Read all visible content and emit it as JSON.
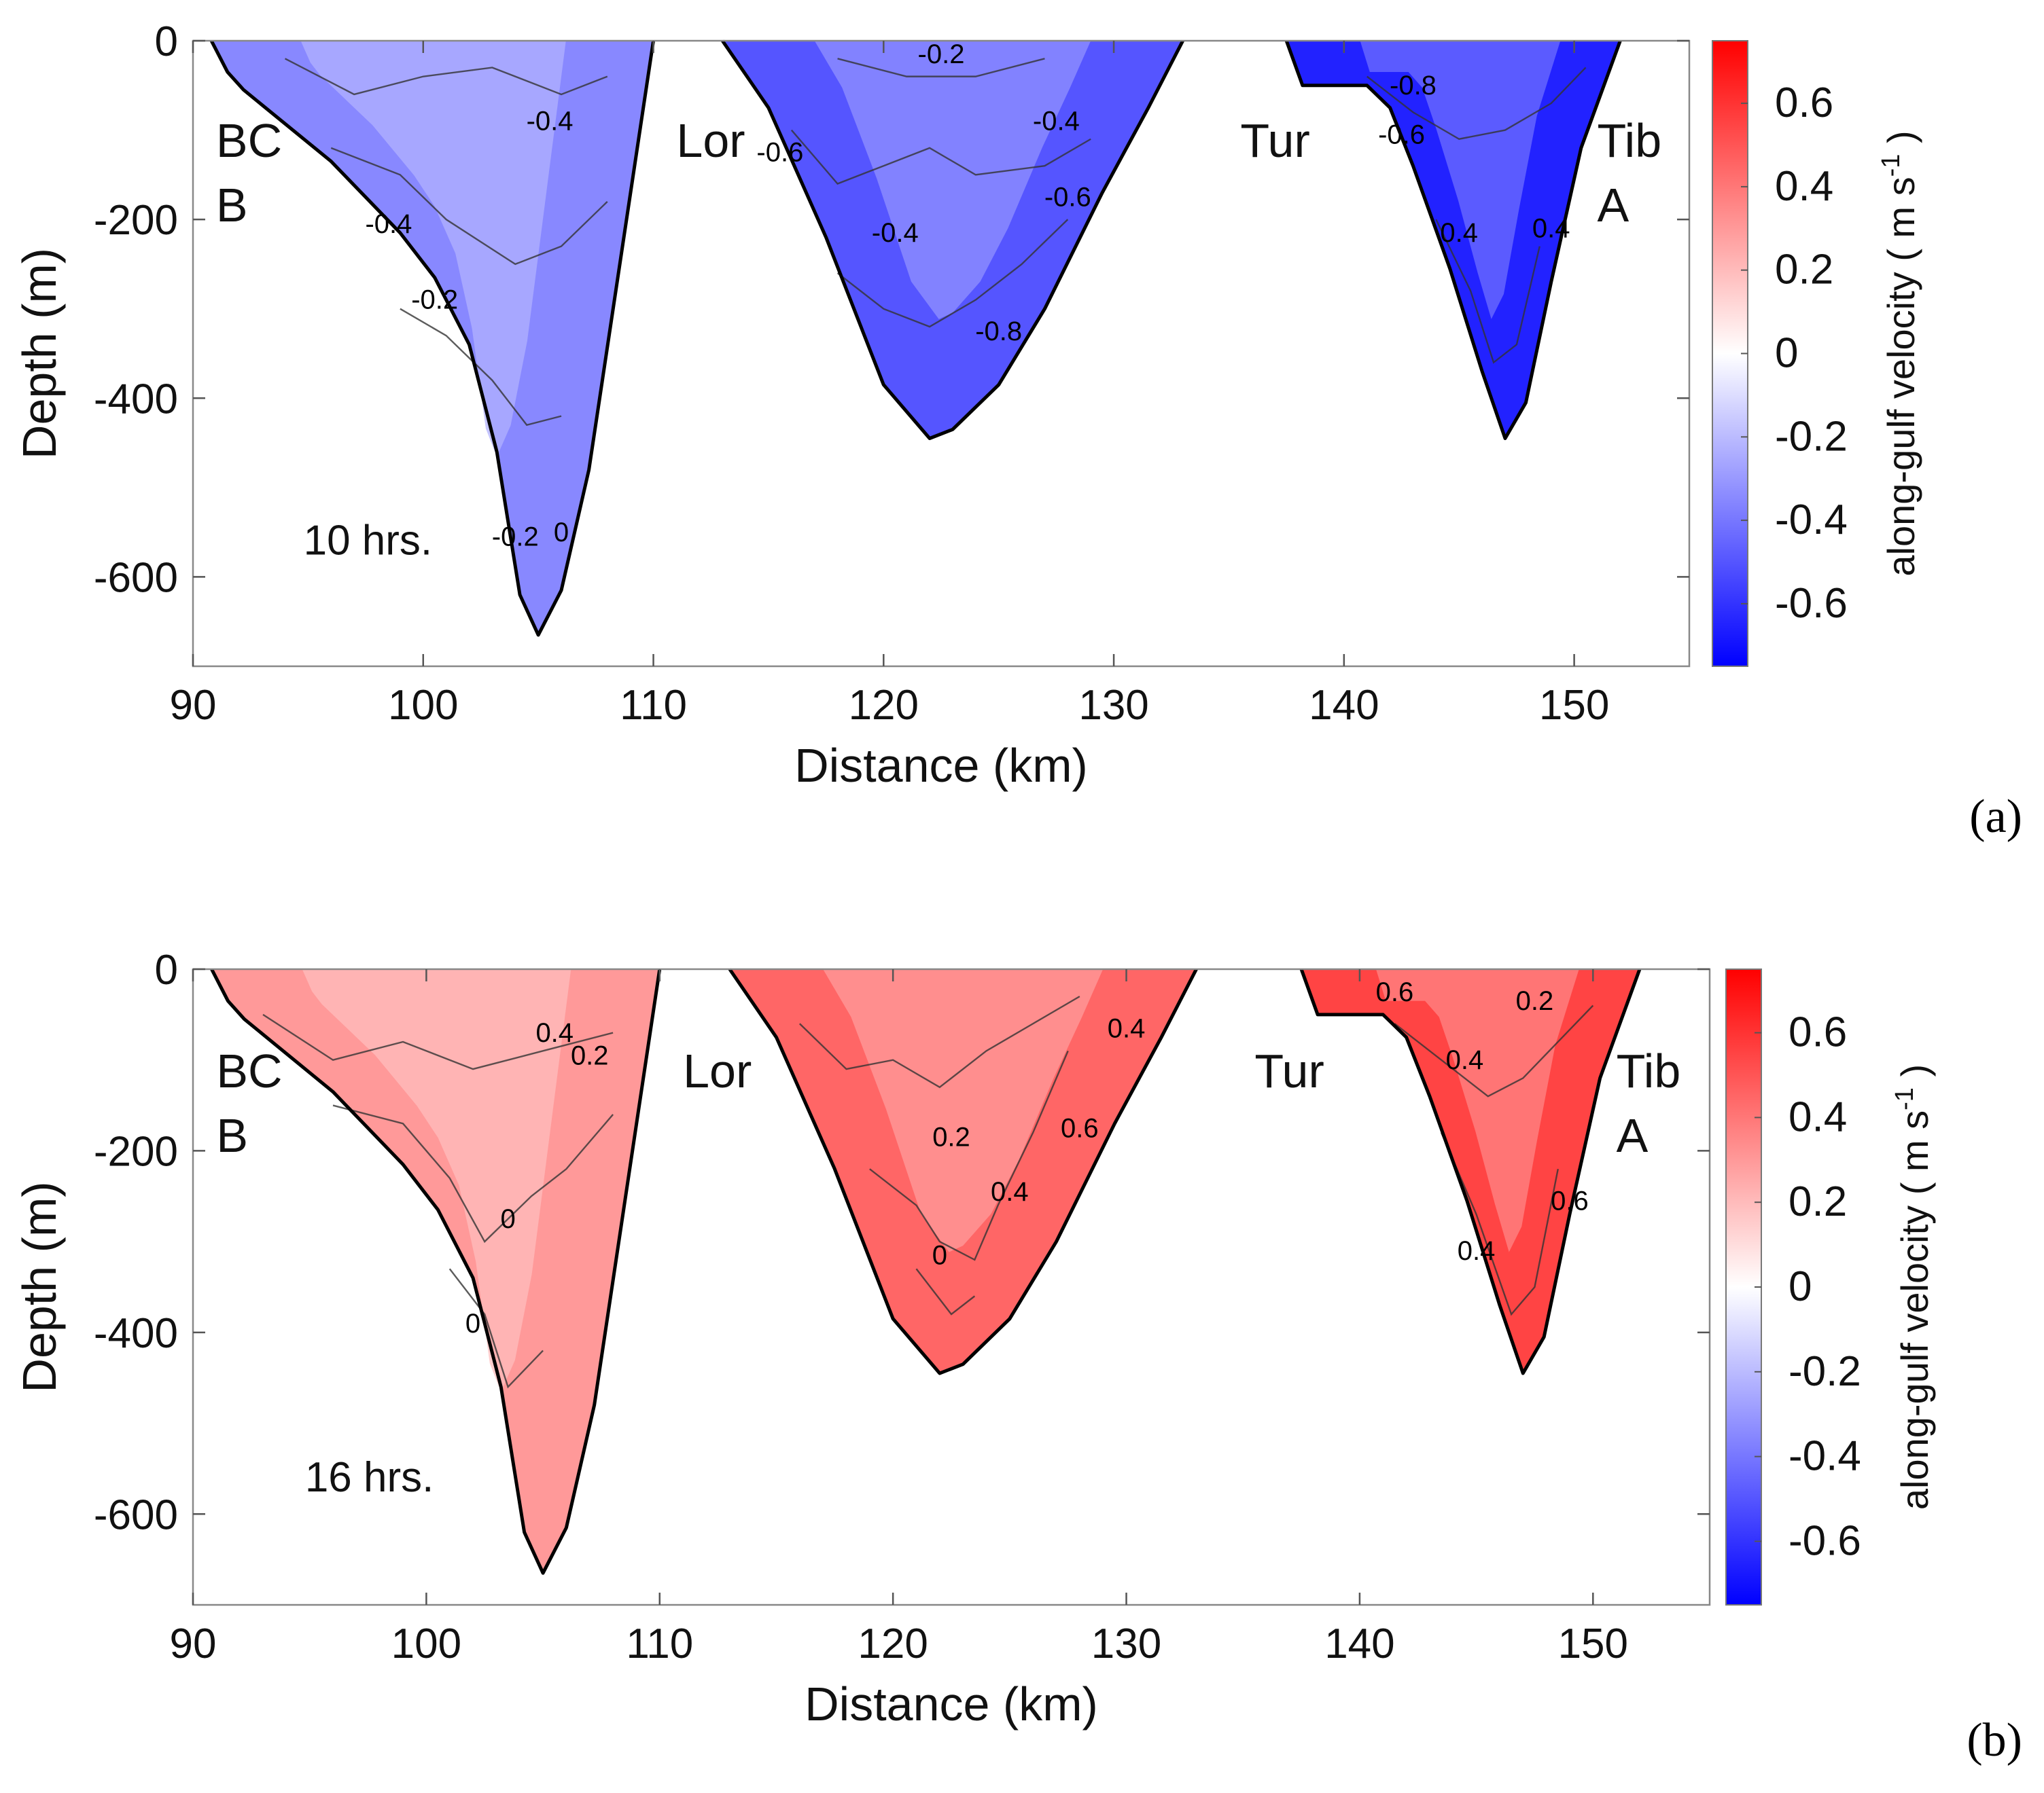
{
  "colors": {
    "negative": "#0000ff",
    "positive": "#ff0000",
    "zero": "#ffffff",
    "topography": "#ffffff"
  },
  "chart_data": [
    {
      "type": "heatmap",
      "panel_label": "(a)",
      "time_label": "10 hrs.",
      "xlabel": "Distance (km)",
      "ylabel": "Depth (m)",
      "xlim": [
        90,
        155
      ],
      "ylim": [
        -700,
        0
      ],
      "xticks": [
        90,
        100,
        110,
        120,
        130,
        140,
        150
      ],
      "yticks": [
        0,
        -200,
        -400,
        -600
      ],
      "colorbar": {
        "label": "along-gulf velocity ( m s",
        "label_sup": "-1",
        "label_end": ")",
        "range": [
          -0.75,
          0.75
        ],
        "ticks": [
          "0.6",
          "0.4",
          "0.2",
          "0",
          "-0.2",
          "-0.4",
          "-0.6"
        ],
        "tick_values": [
          0.6,
          0.4,
          0.2,
          0,
          -0.2,
          -0.4,
          -0.6
        ]
      },
      "region_labels": [
        {
          "line1": "BC",
          "line2": "B",
          "x": 91.0,
          "y": -130
        },
        {
          "line1": "Lor",
          "line2": "",
          "x": 111.0,
          "y": -130
        },
        {
          "line1": "Tur",
          "line2": "",
          "x": 135.5,
          "y": -130
        },
        {
          "line1": "Tib",
          "line2": "A",
          "x": 151.0,
          "y": -130
        }
      ],
      "channels": [
        {
          "name": "BC B",
          "x_range": [
            91,
            110
          ],
          "max_depth": -665,
          "mean_velocity": -0.35
        },
        {
          "name": "Lor",
          "x_range": [
            113,
            133
          ],
          "max_depth": -445,
          "mean_velocity": -0.5
        },
        {
          "name": "Tib A",
          "x_range": [
            139,
            152
          ],
          "max_depth": -445,
          "mean_velocity": -0.65
        }
      ],
      "contour_labels": [
        {
          "text": "-0.4",
          "x": 105.5,
          "y": -100
        },
        {
          "text": "-0.4",
          "x": 98.5,
          "y": -215
        },
        {
          "text": "-0.2",
          "x": 100.5,
          "y": -300
        },
        {
          "text": "-0.2",
          "x": 104.0,
          "y": -565
        },
        {
          "text": "0",
          "x": 106.0,
          "y": -560
        },
        {
          "text": "-0.2",
          "x": 122.5,
          "y": -25
        },
        {
          "text": "-0.6",
          "x": 115.5,
          "y": -135
        },
        {
          "text": "-0.4",
          "x": 120.5,
          "y": -225
        },
        {
          "text": "-0.4",
          "x": 127.5,
          "y": -100
        },
        {
          "text": "-0.6",
          "x": 128.0,
          "y": -185
        },
        {
          "text": "-0.8",
          "x": 125.0,
          "y": -335
        },
        {
          "text": "-0.8",
          "x": 143.0,
          "y": -60
        },
        {
          "text": "-0.6",
          "x": 142.5,
          "y": -115
        },
        {
          "text": "0.4",
          "x": 145.0,
          "y": -225
        },
        {
          "text": "0.4",
          "x": 149.0,
          "y": -220
        }
      ]
    },
    {
      "type": "heatmap",
      "panel_label": "(b)",
      "time_label": "16 hrs.",
      "xlabel": "Distance (km)",
      "ylabel": "Depth (m)",
      "xlim": [
        90,
        155
      ],
      "ylim": [
        -700,
        0
      ],
      "xticks": [
        90,
        100,
        110,
        120,
        130,
        140,
        150
      ],
      "yticks": [
        0,
        -200,
        -400,
        -600
      ],
      "colorbar": {
        "label": "along-gulf velocity ( m s",
        "label_sup": "-1",
        "label_end": ")",
        "range": [
          -0.75,
          0.75
        ],
        "ticks": [
          "0.6",
          "0.4",
          "0.2",
          "0",
          "-0.2",
          "-0.4",
          "-0.6"
        ],
        "tick_values": [
          0.6,
          0.4,
          0.2,
          0,
          -0.2,
          -0.4,
          -0.6
        ]
      },
      "region_labels": [
        {
          "line1": "BC",
          "line2": "B",
          "x": 91.0,
          "y": -130
        },
        {
          "line1": "Lor",
          "line2": "",
          "x": 111.0,
          "y": -130
        },
        {
          "line1": "Tur",
          "line2": "",
          "x": 135.5,
          "y": -130
        },
        {
          "line1": "Tib",
          "line2": "A",
          "x": 151.0,
          "y": -130
        }
      ],
      "channels": [
        {
          "name": "BC B",
          "x_range": [
            91,
            110
          ],
          "max_depth": -665,
          "mean_velocity": 0.3
        },
        {
          "name": "Lor",
          "x_range": [
            113,
            133
          ],
          "max_depth": -445,
          "mean_velocity": 0.45
        },
        {
          "name": "Tib A",
          "x_range": [
            139,
            152
          ],
          "max_depth": -445,
          "mean_velocity": 0.55
        }
      ],
      "contour_labels": [
        {
          "text": "0.4",
          "x": 105.5,
          "y": -80
        },
        {
          "text": "0.2",
          "x": 107.0,
          "y": -105
        },
        {
          "text": "0",
          "x": 103.5,
          "y": -285
        },
        {
          "text": "0",
          "x": 102.0,
          "y": -400
        },
        {
          "text": "0.2",
          "x": 122.5,
          "y": -195
        },
        {
          "text": "0.4",
          "x": 125.0,
          "y": -255
        },
        {
          "text": "0",
          "x": 122.0,
          "y": -325
        },
        {
          "text": "0.6",
          "x": 128.0,
          "y": -185
        },
        {
          "text": "0.4",
          "x": 130.0,
          "y": -75
        },
        {
          "text": "0.6",
          "x": 141.5,
          "y": -35
        },
        {
          "text": "0.2",
          "x": 147.5,
          "y": -45
        },
        {
          "text": "0.4",
          "x": 144.5,
          "y": -110
        },
        {
          "text": "0.6",
          "x": 149.0,
          "y": -265
        },
        {
          "text": "0.4",
          "x": 145.0,
          "y": -320
        }
      ]
    }
  ]
}
